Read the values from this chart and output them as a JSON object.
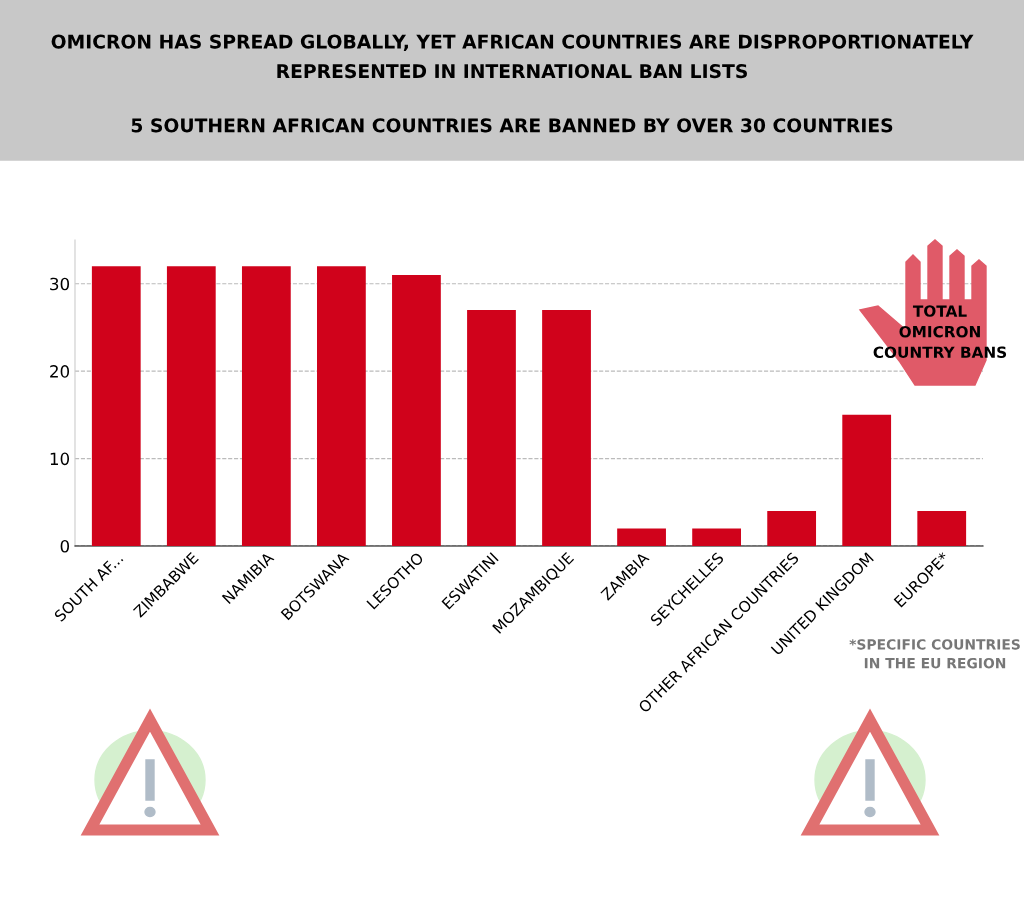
{
  "chart_data": {
    "type": "bar",
    "title": "OMICRON HAS SPREAD GLOBALLY, YET AFRICAN COUNTRIES ARE DISPROPORTIONATELY\nREPRESENTED IN INTERNATIONAL BAN LISTS",
    "subtitle": "5 SOUTHERN AFRICAN COUNTRIES ARE BANNED BY OVER 30 COUNTRIES",
    "categories": [
      "SOUTH AF...",
      "ZIMBABWE",
      "NAMIBIA",
      "BOTSWANA",
      "LESOTHO",
      "ESWATINI",
      "MOZAMBIQUE",
      "ZAMBIA",
      "SEYCHELLES",
      "OTHER AFRICAN COUNTRIES",
      "UNITED KINGDOM",
      "EUROPE*"
    ],
    "values": [
      32,
      32,
      32,
      32,
      31,
      27,
      27,
      2,
      2,
      4,
      15,
      4
    ],
    "color": "#d0021b",
    "ylim": [
      0,
      35
    ],
    "yticks": [
      0,
      10,
      20,
      30
    ],
    "grid": "y",
    "annotations": [
      "TOTAL\nOMICRON\nCOUNTRY BANS",
      "*SPECIFIC COUNTRIES\nIN THE EU REGION"
    ]
  }
}
